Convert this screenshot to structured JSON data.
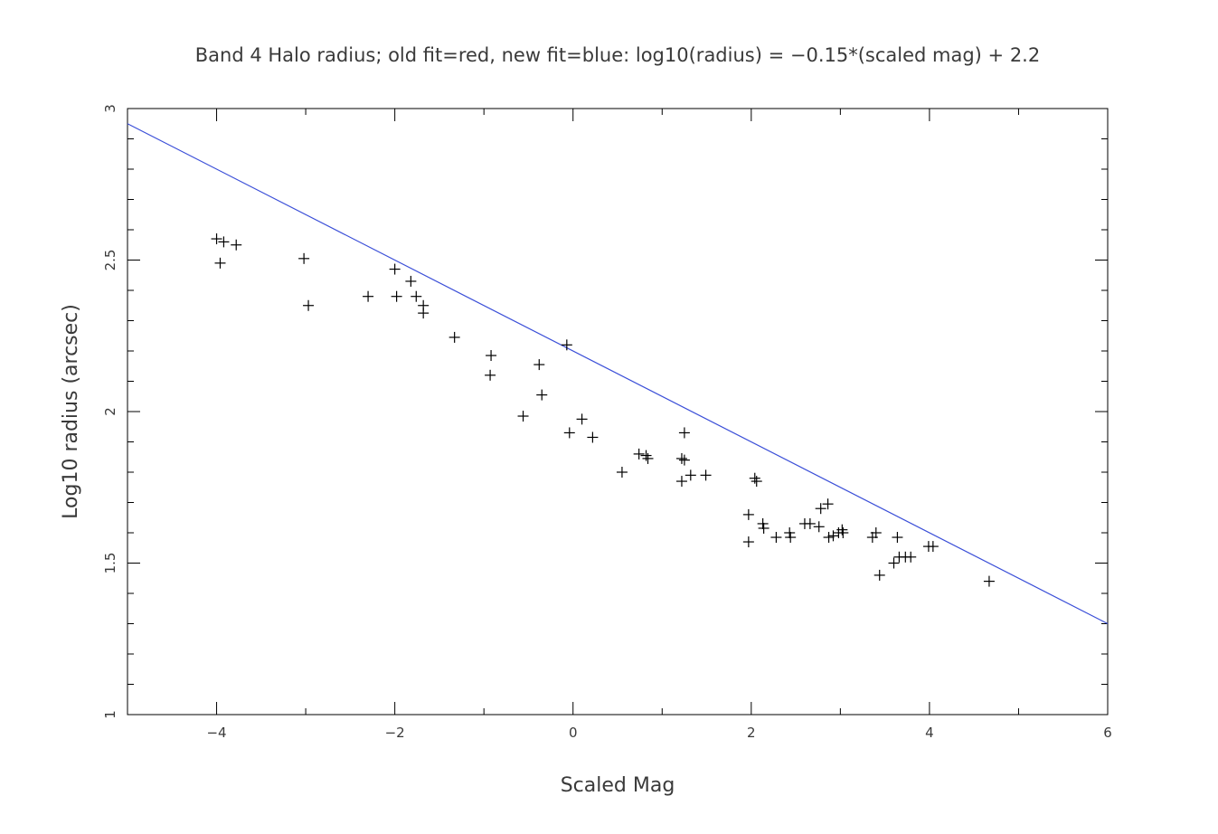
{
  "chart_data": {
    "type": "scatter",
    "title": "Band 4 Halo radius; old fit=red, new fit=blue: log10(radius) = −0.15*(scaled mag) + 2.2",
    "xlabel": "Scaled Mag",
    "ylabel": "Log10 radius (arcsec)",
    "xlim": [
      -5,
      6
    ],
    "ylim": [
      1,
      3
    ],
    "xticks": [
      -4,
      -2,
      0,
      2,
      4,
      6
    ],
    "xtick_labels": [
      "−4",
      "−2",
      "0",
      "2",
      "4",
      "6"
    ],
    "yticks": [
      1,
      1.5,
      2,
      2.5,
      3
    ],
    "ytick_labels": [
      "1",
      "1.5",
      "2",
      "2.5",
      "3"
    ],
    "grid": false,
    "fit_line": {
      "slope": -0.15,
      "intercept": 2.2,
      "color": "#3b4fd8"
    },
    "marker_color": "#000000",
    "points": [
      [
        -4.0,
        2.57
      ],
      [
        -3.92,
        2.56
      ],
      [
        -3.78,
        2.55
      ],
      [
        -3.96,
        2.49
      ],
      [
        -3.02,
        2.505
      ],
      [
        -2.97,
        2.35
      ],
      [
        -2.3,
        2.38
      ],
      [
        -2.0,
        2.47
      ],
      [
        -1.98,
        2.38
      ],
      [
        -1.82,
        2.43
      ],
      [
        -1.76,
        2.38
      ],
      [
        -1.68,
        2.35
      ],
      [
        -1.68,
        2.325
      ],
      [
        -1.33,
        2.245
      ],
      [
        -0.92,
        2.185
      ],
      [
        -0.93,
        2.12
      ],
      [
        -0.38,
        2.155
      ],
      [
        -0.35,
        2.055
      ],
      [
        -0.56,
        1.985
      ],
      [
        -0.07,
        2.22
      ],
      [
        -0.04,
        1.93
      ],
      [
        0.1,
        1.975
      ],
      [
        0.22,
        1.915
      ],
      [
        0.55,
        1.8
      ],
      [
        0.74,
        1.86
      ],
      [
        0.82,
        1.855
      ],
      [
        0.84,
        1.845
      ],
      [
        1.22,
        1.845
      ],
      [
        1.25,
        1.93
      ],
      [
        1.25,
        1.84
      ],
      [
        1.22,
        1.77
      ],
      [
        1.32,
        1.79
      ],
      [
        1.49,
        1.79
      ],
      [
        1.97,
        1.66
      ],
      [
        1.97,
        1.57
      ],
      [
        2.04,
        1.78
      ],
      [
        2.06,
        1.77
      ],
      [
        2.13,
        1.63
      ],
      [
        2.14,
        1.615
      ],
      [
        2.28,
        1.585
      ],
      [
        2.43,
        1.6
      ],
      [
        2.44,
        1.585
      ],
      [
        2.6,
        1.63
      ],
      [
        2.66,
        1.63
      ],
      [
        2.76,
        1.62
      ],
      [
        2.78,
        1.68
      ],
      [
        2.86,
        1.695
      ],
      [
        2.87,
        1.585
      ],
      [
        2.92,
        1.59
      ],
      [
        2.98,
        1.6
      ],
      [
        3.02,
        1.61
      ],
      [
        3.03,
        1.6
      ],
      [
        3.36,
        1.585
      ],
      [
        3.4,
        1.6
      ],
      [
        3.44,
        1.46
      ],
      [
        3.6,
        1.5
      ],
      [
        3.64,
        1.585
      ],
      [
        3.66,
        1.52
      ],
      [
        3.73,
        1.52
      ],
      [
        3.79,
        1.52
      ],
      [
        3.99,
        1.555
      ],
      [
        4.04,
        1.555
      ],
      [
        4.67,
        1.44
      ]
    ]
  }
}
